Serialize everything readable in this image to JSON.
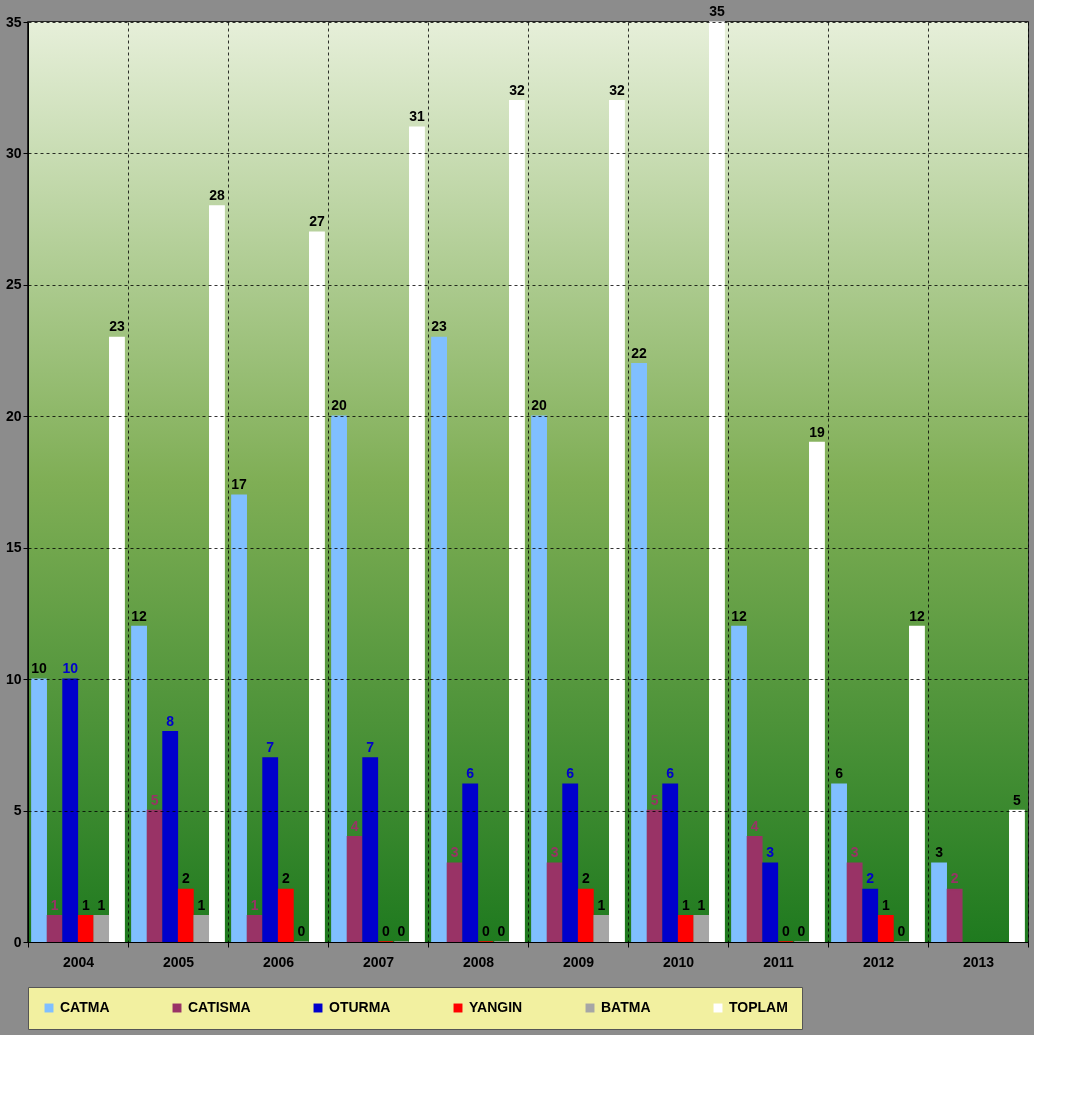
{
  "chart_data": {
    "type": "bar",
    "categories": [
      "2004",
      "2005",
      "2006",
      "2007",
      "2008",
      "2009",
      "2010",
      "2011",
      "2012",
      "2013"
    ],
    "series": [
      {
        "name": "CATMA",
        "color": "#80bfff",
        "values": [
          10,
          12,
          17,
          20,
          23,
          20,
          22,
          12,
          6,
          3
        ]
      },
      {
        "name": "CATISMA",
        "color": "#993366",
        "values": [
          1,
          5,
          1,
          4,
          3,
          3,
          5,
          4,
          3,
          2
        ]
      },
      {
        "name": "OTURMA",
        "color": "#0000cc",
        "values": [
          10,
          8,
          7,
          7,
          6,
          6,
          6,
          3,
          2,
          null
        ]
      },
      {
        "name": "YANGIN",
        "color": "#ff0000",
        "values": [
          1,
          2,
          2,
          0,
          0,
          2,
          1,
          0,
          1,
          null
        ]
      },
      {
        "name": "BATMA",
        "color": "#a6a6a6",
        "values": [
          1,
          1,
          0,
          0,
          0,
          1,
          1,
          0,
          0,
          null
        ]
      },
      {
        "name": "TOPLAM",
        "color": "#ffffff",
        "values": [
          23,
          28,
          27,
          31,
          32,
          32,
          35,
          19,
          12,
          5
        ]
      }
    ],
    "ylim": [
      0,
      35
    ],
    "yticks": [
      0,
      5,
      10,
      15,
      20,
      25,
      30,
      35
    ],
    "grid": true,
    "legend": "bottom",
    "data_labels": true
  }
}
